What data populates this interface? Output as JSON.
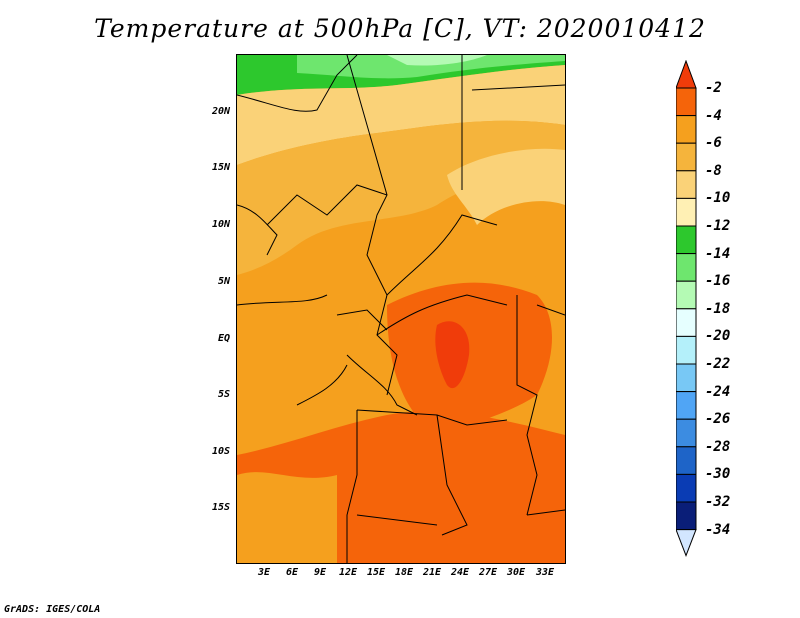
{
  "title": "Temperature at 500hPa [C], VT: 2020010412",
  "credit": "GrADS: IGES/COLA",
  "axes": {
    "y_ticks": [
      "20N",
      "15N",
      "10N",
      "5N",
      "EQ",
      "5S",
      "10S",
      "15S"
    ],
    "x_ticks": [
      "3E",
      "6E",
      "9E",
      "12E",
      "15E",
      "18E",
      "21E",
      "24E",
      "27E",
      "30E",
      "33E"
    ]
  },
  "colorbar": {
    "labels": [
      "-2",
      "-4",
      "-6",
      "-8",
      "-10",
      "-12",
      "-14",
      "-16",
      "-18",
      "-20",
      "-22",
      "-24",
      "-26",
      "-28",
      "-30",
      "-32",
      "-34"
    ],
    "colors": [
      "#f03c0a",
      "#f5640a",
      "#f5a01e",
      "#f5b43c",
      "#fad278",
      "#fff0b4",
      "#2dc82d",
      "#6ee66e",
      "#b4fab4",
      "#e6ffff",
      "#b4f0fa",
      "#78c8f5",
      "#50a5f5",
      "#3c8ce1",
      "#1e64c8",
      "#0a3cb4",
      "#0a1e78"
    ],
    "top_arrow_color": "#f03c0a",
    "bottom_arrow_color": "#d2e6ff"
  }
}
